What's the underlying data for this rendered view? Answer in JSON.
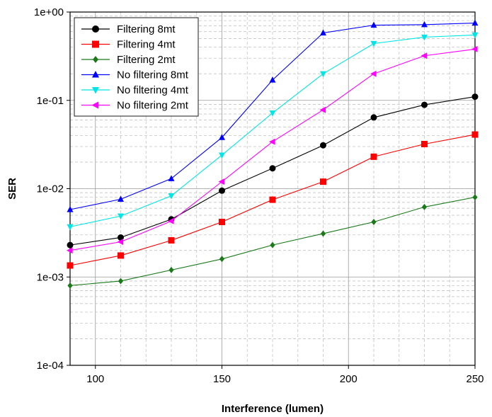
{
  "chart_data": {
    "type": "line",
    "xlabel": "Interference (lumen)",
    "ylabel": "SER",
    "xlim": [
      90,
      250
    ],
    "ylim": [
      0.0001,
      1
    ],
    "yscale": "log",
    "grid": true,
    "legend_position": "top-left",
    "x_ticks": [
      100,
      150,
      200,
      250
    ],
    "y_ticks": [
      {
        "value": 0.0001,
        "label": "1e-04"
      },
      {
        "value": 0.001,
        "label": "1e-03"
      },
      {
        "value": 0.01,
        "label": "1e-02"
      },
      {
        "value": 0.1,
        "label": "1e-01"
      },
      {
        "value": 1,
        "label": "1e+00"
      }
    ],
    "x": [
      90,
      110,
      130,
      150,
      170,
      190,
      210,
      230,
      250
    ],
    "series": [
      {
        "name": "Filtering 8mt",
        "color": "#000000",
        "marker": "circle",
        "values": [
          0.0023,
          0.0028,
          0.0045,
          0.0095,
          0.017,
          0.031,
          0.064,
          0.089,
          0.11
        ]
      },
      {
        "name": "Filtering 4mt",
        "color": "#ff0000",
        "marker": "square",
        "values": [
          0.00135,
          0.00175,
          0.0026,
          0.0042,
          0.0075,
          0.012,
          0.023,
          0.032,
          0.041
        ]
      },
      {
        "name": "Filtering 2mt",
        "color": "#1a7a1a",
        "marker": "diamond",
        "values": [
          0.0008,
          0.0009,
          0.0012,
          0.0016,
          0.0023,
          0.0031,
          0.0042,
          0.0062,
          0.008
        ]
      },
      {
        "name": "No filtering 8mt",
        "color": "#0000ff",
        "marker": "triangle-up",
        "values": [
          0.0058,
          0.0076,
          0.013,
          0.038,
          0.17,
          0.58,
          0.71,
          0.72,
          0.75
        ]
      },
      {
        "name": "No filtering 4mt",
        "color": "#00e5e5",
        "marker": "triangle-down",
        "values": [
          0.0037,
          0.0049,
          0.0083,
          0.024,
          0.072,
          0.2,
          0.44,
          0.52,
          0.55
        ]
      },
      {
        "name": "No filtering 2mt",
        "color": "#ff00ff",
        "marker": "triangle-left",
        "values": [
          0.002,
          0.0025,
          0.0043,
          0.012,
          0.034,
          0.078,
          0.2,
          0.32,
          0.38
        ]
      }
    ]
  }
}
